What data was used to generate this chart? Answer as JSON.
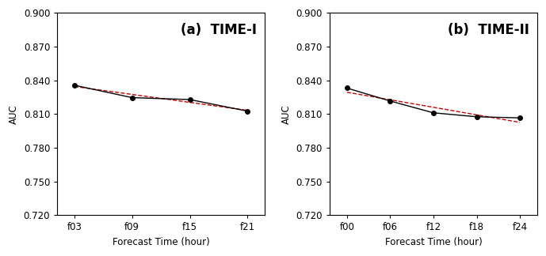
{
  "panel_a": {
    "title": "(a)  TIME-I",
    "x_labels": [
      "f03",
      "f09",
      "f15",
      "f21"
    ],
    "x_values": [
      3,
      9,
      15,
      21
    ],
    "y_data": [
      0.8355,
      0.8245,
      0.8228,
      0.8125
    ],
    "xlabel": "Forecast Time (hour)",
    "ylabel": "AUC"
  },
  "panel_b": {
    "title": "(b)  TIME-II",
    "x_labels": [
      "f00",
      "f06",
      "f12",
      "f18",
      "f24"
    ],
    "x_values": [
      0,
      6,
      12,
      18,
      24
    ],
    "y_data": [
      0.833,
      0.8215,
      0.811,
      0.8075,
      0.8065
    ],
    "xlabel": "Forecast Time (hour)",
    "ylabel": "AUC"
  },
  "ylim": [
    0.72,
    0.9
  ],
  "yticks": [
    0.72,
    0.75,
    0.78,
    0.81,
    0.84,
    0.87,
    0.9
  ],
  "line_color": "#000000",
  "regression_color": "#cc0000",
  "marker": "o",
  "marker_size": 4,
  "line_width": 1.0,
  "regression_linestyle": "--",
  "background_color": "#ffffff",
  "title_fontsize": 12,
  "label_fontsize": 8.5,
  "tick_fontsize": 8.5
}
